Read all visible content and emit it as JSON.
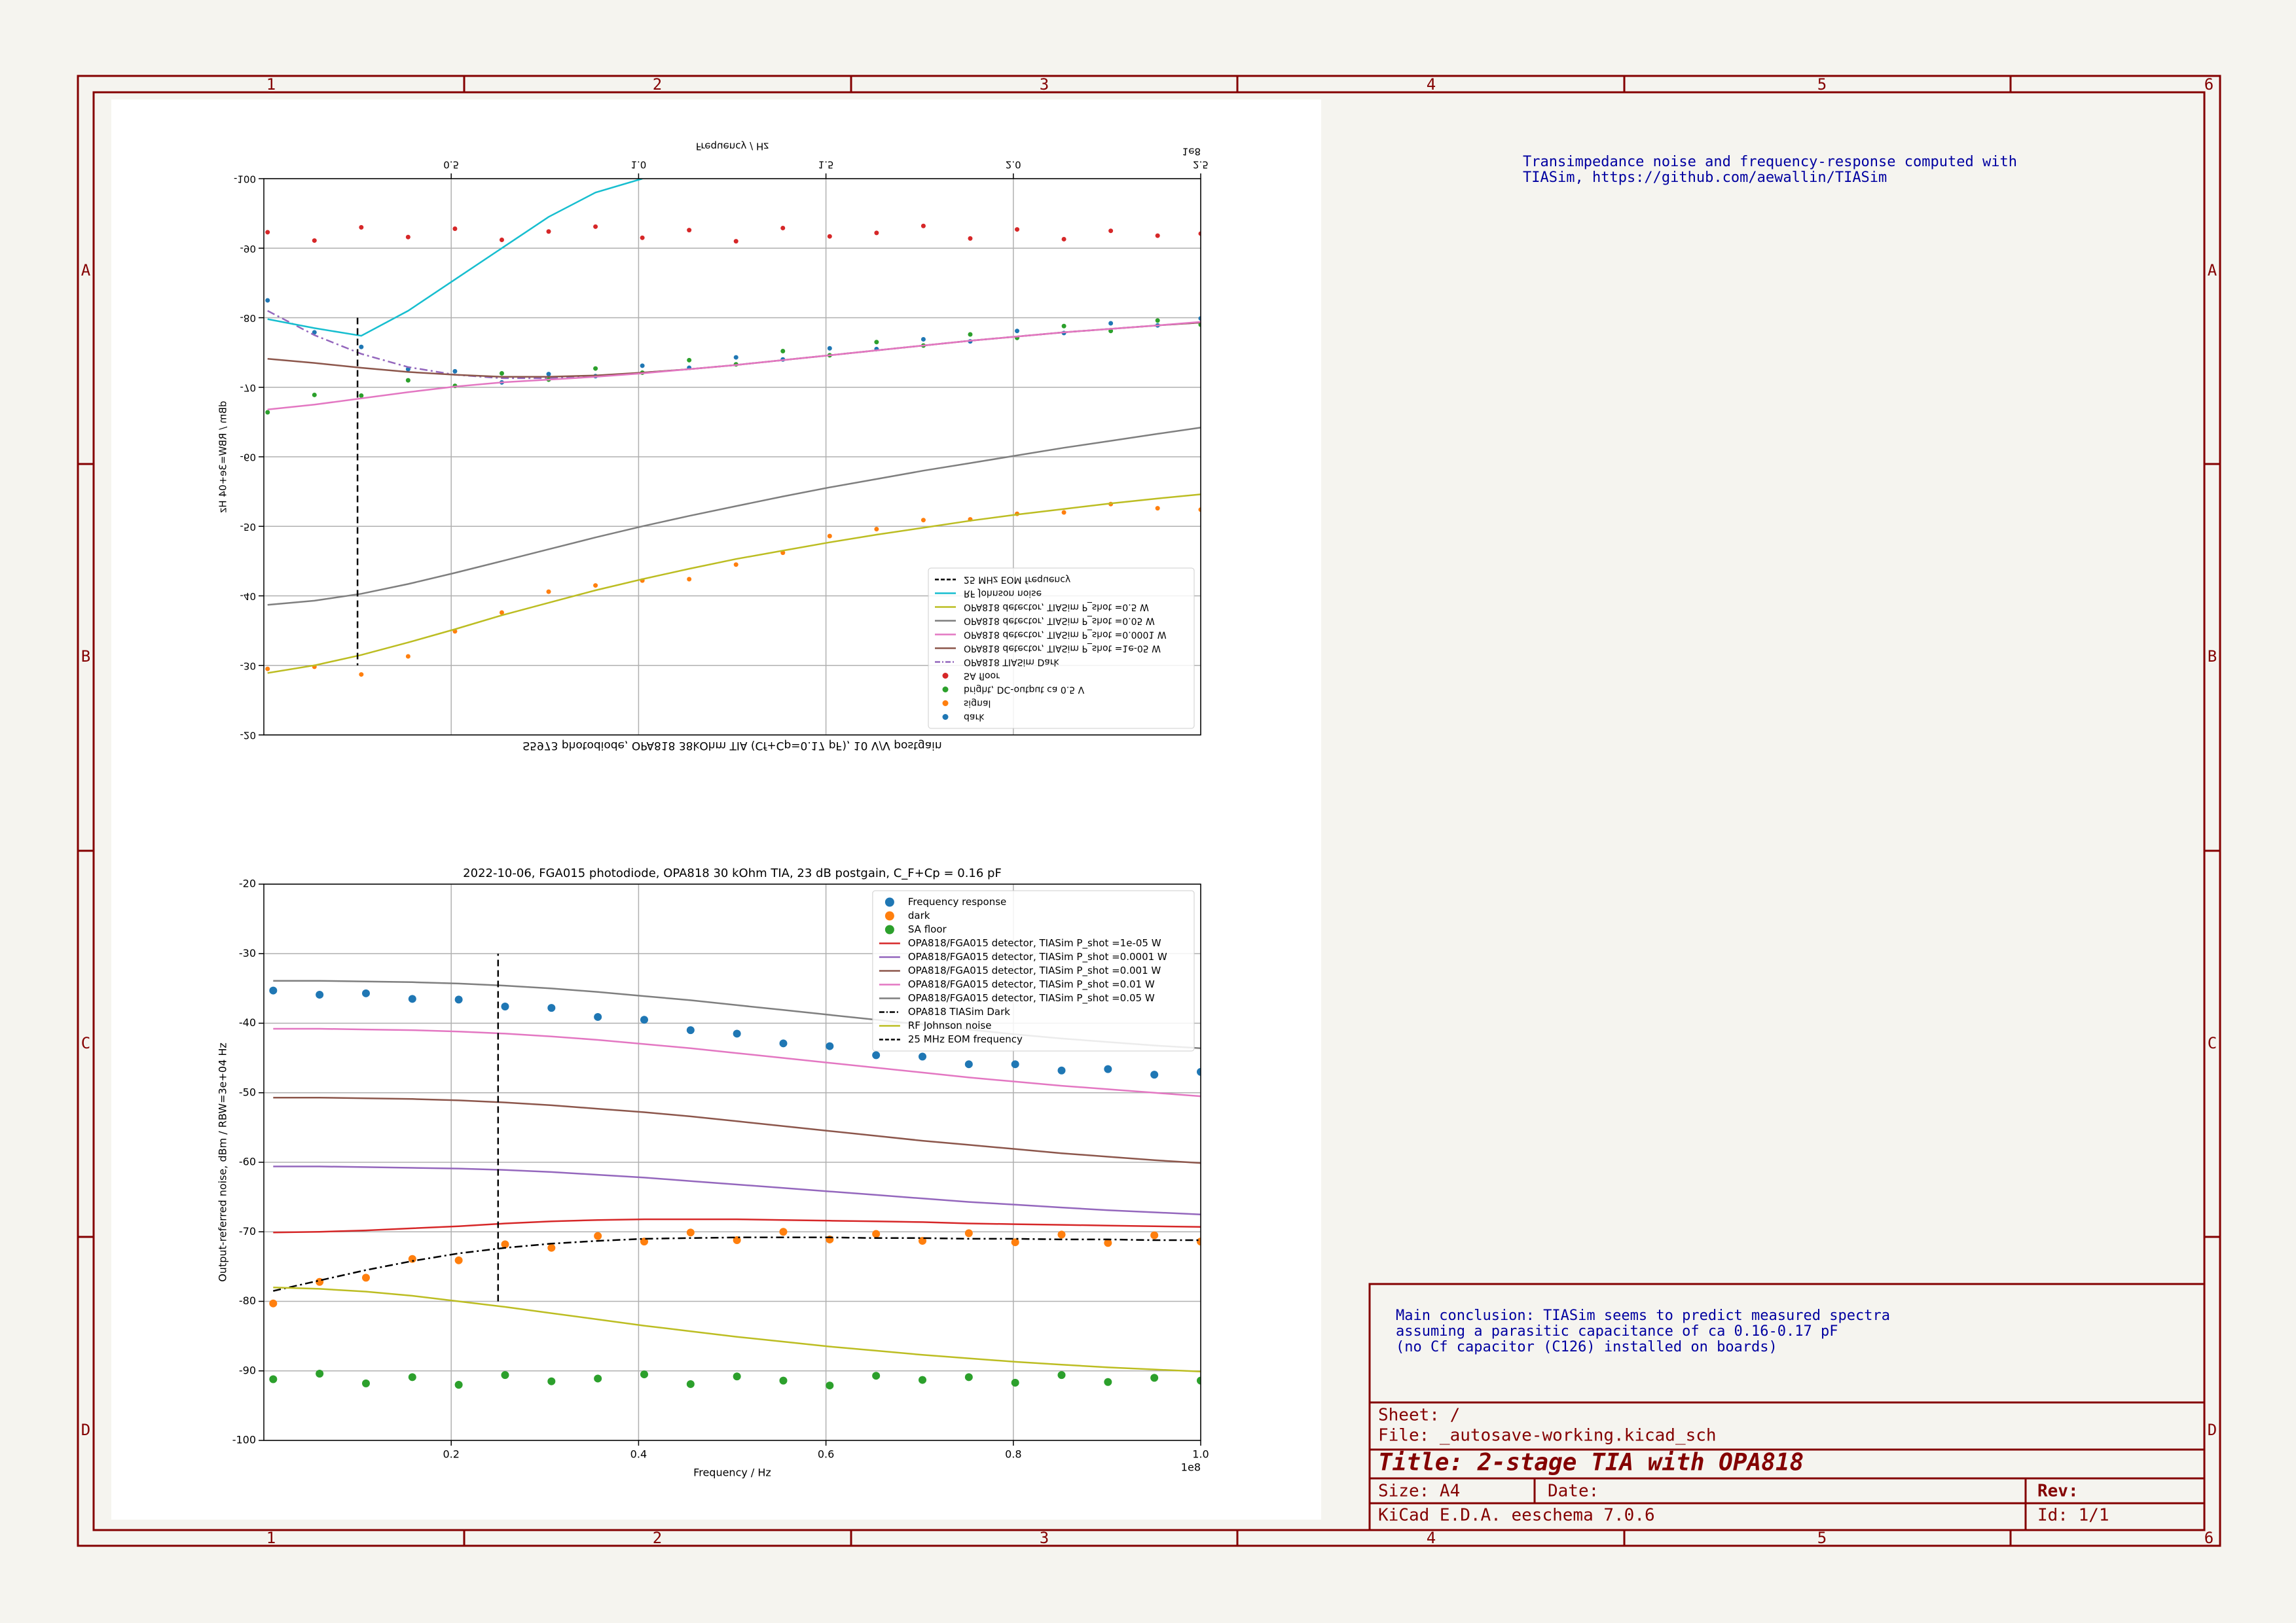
{
  "border": {
    "columns": [
      "1",
      "2",
      "3",
      "4",
      "5",
      "6"
    ],
    "rows": [
      "A",
      "B",
      "C",
      "D"
    ]
  },
  "notes": {
    "top": [
      "Transimpedance noise and frequency-response computed with",
      "TIASim, https://github.com/aewallin/TIASim"
    ],
    "conclusion": [
      "Main conclusion: TIASim seems to predict measured spectra",
      "assuming a parasitic capacitance of ca 0.16-0.17 pF",
      "(no Cf capacitor (C126) installed on boards)"
    ]
  },
  "title_block": {
    "sheet": "Sheet: /",
    "file": "File: _autosave-working.kicad_sch",
    "title": "Title: 2-stage TIA with OPA818",
    "size": "Size: A4",
    "date": "Date:",
    "rev": "Rev:",
    "tool": "KiCad E.D.A.  eeschema 7.0.6",
    "id": "Id: 1/1"
  },
  "chart_data": [
    {
      "type": "line",
      "flipped": true,
      "title": "S5973 photodiode, OPA818 38kOhm TIA (Cf+Cp=0.17 pF), 10 V/V postgain",
      "x_label": "Frequency / Hz",
      "y_label": "dBm / RBW=3e+04 Hz",
      "x_offset_label": "1e8",
      "grid": true,
      "legend": "upper right",
      "xlim": [
        0,
        2.5
      ],
      "ylim": [
        -100,
        -20
      ],
      "xticks": [
        0.5,
        {
          "value": 1,
          "label": "1.0"
        },
        1.5,
        {
          "value": 2,
          "label": "2.0"
        },
        2.5
      ],
      "yticks": [
        -100,
        -90,
        -80,
        -70,
        -60,
        -50,
        -40,
        -30,
        -20
      ],
      "x": [
        0.01,
        0.135,
        0.26,
        0.385,
        0.51,
        0.635,
        0.76,
        0.885,
        1.01,
        1.135,
        1.26,
        1.385,
        1.51,
        1.635,
        1.76,
        1.885,
        2.01,
        2.135,
        2.26,
        2.385,
        2.5
      ],
      "series": [
        {
          "name": "dark",
          "kind": "scatter",
          "color": "#1f77b4",
          "values": [
            -82.5,
            -77.9,
            -75.8,
            -72.6,
            -72.3,
            -70.7,
            -71.9,
            -71.6,
            -73.1,
            -72.8,
            -74.3,
            -74.0,
            -75.6,
            -75.5,
            -76.9,
            -76.6,
            -78.1,
            -77.8,
            -79.2,
            -78.9,
            -79.9
          ]
        },
        {
          "name": "signal",
          "kind": "scatter",
          "color": "#ff7f0e",
          "values": [
            -29.5,
            -29.8,
            -28.7,
            -31.3,
            -34.9,
            -37.6,
            -40.6,
            -41.5,
            -42.2,
            -42.4,
            -44.5,
            -46.2,
            -48.6,
            -49.6,
            -50.9,
            -51.0,
            -51.8,
            -52.0,
            -53.2,
            -52.6,
            -52.4
          ]
        },
        {
          "name": "bright, DC-output ca 0.5 V",
          "kind": "scatter",
          "color": "#2ca02c",
          "values": [
            -66.4,
            -68.9,
            -68.8,
            -71.0,
            -70.2,
            -72.0,
            -71.1,
            -72.7,
            -72.1,
            -73.9,
            -73.3,
            -75.2,
            -74.6,
            -76.5,
            -76.0,
            -77.6,
            -77.1,
            -78.8,
            -78.1,
            -79.6,
            -79.0
          ]
        },
        {
          "name": "SA floor",
          "kind": "scatter",
          "color": "#d62728",
          "values": [
            -92.3,
            -91.1,
            -93.0,
            -91.6,
            -92.8,
            -91.2,
            -92.4,
            -93.1,
            -91.5,
            -92.6,
            -91.0,
            -92.9,
            -91.7,
            -92.2,
            -93.2,
            -91.4,
            -92.7,
            -91.3,
            -92.5,
            -91.8,
            -92.1
          ]
        },
        {
          "name": "OPA818 TIASim Dark",
          "kind": "line",
          "dash": "dashdot",
          "color": "#9467bd",
          "values": [
            -81.0,
            -77.5,
            -74.8,
            -72.9,
            -71.8,
            -71.3,
            -71.3,
            -71.6,
            -72.1,
            -72.6,
            -73.2,
            -73.9,
            -74.6,
            -75.3,
            -76.0,
            -76.7,
            -77.3,
            -77.9,
            -78.4,
            -78.9,
            -79.3
          ]
        },
        {
          "name": "OPA818 detector, TIASim P_shot =1e-05 W",
          "kind": "line",
          "color": "#8c564b",
          "values": [
            -74.1,
            -73.5,
            -72.8,
            -72.2,
            -71.8,
            -71.5,
            -71.5,
            -71.7,
            -72.1,
            -72.6,
            -73.2,
            -73.9,
            -74.6,
            -75.3,
            -76.0,
            -76.7,
            -77.3,
            -77.9,
            -78.4,
            -78.9,
            -79.3
          ]
        },
        {
          "name": "OPA818 detector, TIASim P_shot =0.0001 W",
          "kind": "line",
          "color": "#e377c2",
          "values": [
            -66.8,
            -67.5,
            -68.4,
            -69.3,
            -70.1,
            -70.7,
            -71.1,
            -71.5,
            -72.0,
            -72.6,
            -73.2,
            -73.9,
            -74.6,
            -75.3,
            -76.0,
            -76.7,
            -77.3,
            -77.9,
            -78.4,
            -78.9,
            -79.4
          ]
        },
        {
          "name": "OPA818 detector, TIASim P_shot =0.05 W",
          "kind": "line",
          "color": "#7f7f7f",
          "values": [
            -38.7,
            -39.3,
            -40.3,
            -41.7,
            -43.3,
            -45.0,
            -46.7,
            -48.4,
            -50.0,
            -51.5,
            -52.9,
            -54.3,
            -55.6,
            -56.8,
            -58.0,
            -59.1,
            -60.2,
            -61.3,
            -62.3,
            -63.3,
            -64.2
          ]
        },
        {
          "name": "OPA818 detector, TIASim P_shot =0.5 W",
          "kind": "line",
          "color": "#bcbd22",
          "values": [
            -28.9,
            -30.0,
            -31.5,
            -33.3,
            -35.2,
            -37.2,
            -39.0,
            -40.8,
            -42.4,
            -43.9,
            -45.3,
            -46.5,
            -47.7,
            -48.8,
            -49.8,
            -50.8,
            -51.7,
            -52.5,
            -53.3,
            -54.0,
            -54.6
          ]
        },
        {
          "name": "RF Johnson noise",
          "kind": "line",
          "color": "#17becf",
          "values": [
            -79.8,
            -78.5,
            -77.4,
            -81.0,
            -85.5,
            -90.0,
            -94.5,
            -98.0,
            -100.0,
            null,
            null,
            null,
            null,
            null,
            null,
            null,
            null,
            null,
            null,
            null,
            null
          ]
        },
        {
          "name": "25 MHz EOM frequency",
          "kind": "line",
          "dash": "dashed",
          "color": "#000000",
          "x": [
            0.25,
            0.25
          ],
          "values": [
            -80,
            -30
          ]
        }
      ]
    },
    {
      "type": "line",
      "flipped": false,
      "title": "2022-10-06, FGA015 photodiode, OPA818 30 kOhm TIA, 23 dB postgain, C_F+Cp = 0.16 pF",
      "x_label": "Frequency / Hz",
      "y_label": "Output-referred noise, dBm / RBW=3e+04 Hz",
      "x_offset_label": "1e8",
      "grid": true,
      "legend": "upper right",
      "xlim": [
        0,
        1
      ],
      "ylim": [
        -100,
        -20
      ],
      "xticks": [
        0.2,
        0.4,
        0.6,
        0.8,
        {
          "value": 1,
          "label": "1.0"
        }
      ],
      "yticks": [
        -100,
        -90,
        -80,
        -70,
        -60,
        -50,
        -40,
        -30,
        -20
      ],
      "x": [
        0.01,
        0.0595,
        0.109,
        0.1585,
        0.208,
        0.2575,
        0.307,
        0.3565,
        0.406,
        0.4555,
        0.505,
        0.5545,
        0.604,
        0.6535,
        0.703,
        0.7525,
        0.802,
        0.8515,
        0.901,
        0.9505,
        1.0
      ],
      "series": [
        {
          "name": "Frequency response",
          "kind": "scatter",
          "color": "#1f77b4",
          "values": [
            -35.3,
            -35.9,
            -35.7,
            -36.5,
            -36.6,
            -37.6,
            -37.8,
            -39.1,
            -39.5,
            -41.0,
            -41.5,
            -42.9,
            -43.3,
            -44.6,
            -44.8,
            -45.9,
            -45.9,
            -46.8,
            -46.6,
            -47.4,
            -47.0
          ]
        },
        {
          "name": "dark",
          "kind": "scatter",
          "color": "#ff7f0e",
          "values": [
            -80.3,
            -77.2,
            -76.6,
            -73.9,
            -74.1,
            -71.8,
            -72.3,
            -70.6,
            -71.4,
            -70.1,
            -71.2,
            -70.0,
            -71.1,
            -70.3,
            -71.3,
            -70.2,
            -71.5,
            -70.4,
            -71.6,
            -70.5,
            -71.4
          ]
        },
        {
          "name": "SA floor",
          "kind": "scatter",
          "color": "#2ca02c",
          "values": [
            -91.2,
            -90.4,
            -91.8,
            -90.9,
            -92.0,
            -90.6,
            -91.5,
            -91.1,
            -90.5,
            -91.9,
            -90.8,
            -91.4,
            -92.1,
            -90.7,
            -91.3,
            -90.9,
            -91.7,
            -90.6,
            -91.6,
            -91.0,
            -91.4
          ]
        },
        {
          "name": "OPA818/FGA015 detector, TIASim P_shot =1e-05 W",
          "kind": "line",
          "color": "#d62728",
          "values": [
            -70.1,
            -70.0,
            -69.8,
            -69.5,
            -69.2,
            -68.8,
            -68.5,
            -68.3,
            -68.2,
            -68.2,
            -68.2,
            -68.3,
            -68.4,
            -68.5,
            -68.6,
            -68.8,
            -68.9,
            -69.0,
            -69.1,
            -69.2,
            -69.3
          ]
        },
        {
          "name": "OPA818/FGA015 detector, TIASim P_shot =0.0001 W",
          "kind": "line",
          "color": "#9467bd",
          "values": [
            -60.6,
            -60.6,
            -60.7,
            -60.8,
            -60.9,
            -61.1,
            -61.4,
            -61.8,
            -62.2,
            -62.7,
            -63.2,
            -63.7,
            -64.2,
            -64.7,
            -65.2,
            -65.7,
            -66.1,
            -66.5,
            -66.9,
            -67.2,
            -67.5
          ]
        },
        {
          "name": "OPA818/FGA015 detector, TIASim P_shot =0.001 W",
          "kind": "line",
          "color": "#8c564b",
          "values": [
            -50.7,
            -50.7,
            -50.8,
            -50.9,
            -51.1,
            -51.4,
            -51.8,
            -52.3,
            -52.8,
            -53.4,
            -54.1,
            -54.8,
            -55.5,
            -56.2,
            -56.9,
            -57.5,
            -58.1,
            -58.7,
            -59.2,
            -59.7,
            -60.1
          ]
        },
        {
          "name": "OPA818/FGA015 detector, TIASim P_shot =0.01 W",
          "kind": "line",
          "color": "#e377c2",
          "values": [
            -40.8,
            -40.8,
            -40.9,
            -41.0,
            -41.2,
            -41.5,
            -41.9,
            -42.4,
            -43.0,
            -43.6,
            -44.3,
            -45.0,
            -45.7,
            -46.4,
            -47.1,
            -47.8,
            -48.4,
            -49.0,
            -49.5,
            -50.0,
            -50.5
          ]
        },
        {
          "name": "OPA818/FGA015 detector, TIASim P_shot =0.05 W",
          "kind": "line",
          "color": "#7f7f7f",
          "values": [
            -33.9,
            -33.9,
            -34.0,
            -34.1,
            -34.3,
            -34.6,
            -35.0,
            -35.5,
            -36.1,
            -36.7,
            -37.4,
            -38.1,
            -38.8,
            -39.5,
            -40.2,
            -40.9,
            -41.6,
            -42.2,
            -42.7,
            -43.2,
            -43.6
          ]
        },
        {
          "name": "OPA818 TIASim Dark",
          "kind": "line",
          "dash": "dashdot",
          "color": "#000000",
          "values": [
            -78.5,
            -77.0,
            -75.5,
            -74.2,
            -73.1,
            -72.3,
            -71.7,
            -71.3,
            -71.0,
            -70.9,
            -70.8,
            -70.8,
            -70.8,
            -70.9,
            -70.9,
            -71.0,
            -71.0,
            -71.1,
            -71.1,
            -71.2,
            -71.2
          ]
        },
        {
          "name": "RF Johnson noise",
          "kind": "line",
          "color": "#bcbd22",
          "values": [
            -78.0,
            -78.2,
            -78.6,
            -79.2,
            -80.0,
            -80.8,
            -81.7,
            -82.6,
            -83.5,
            -84.3,
            -85.1,
            -85.8,
            -86.5,
            -87.1,
            -87.7,
            -88.2,
            -88.7,
            -89.1,
            -89.5,
            -89.8,
            -90.1
          ]
        },
        {
          "name": "25 MHz EOM frequency",
          "kind": "line",
          "dash": "dashed",
          "color": "#000000",
          "x": [
            0.25,
            0.25
          ],
          "values": [
            -80,
            -30
          ]
        }
      ]
    }
  ]
}
